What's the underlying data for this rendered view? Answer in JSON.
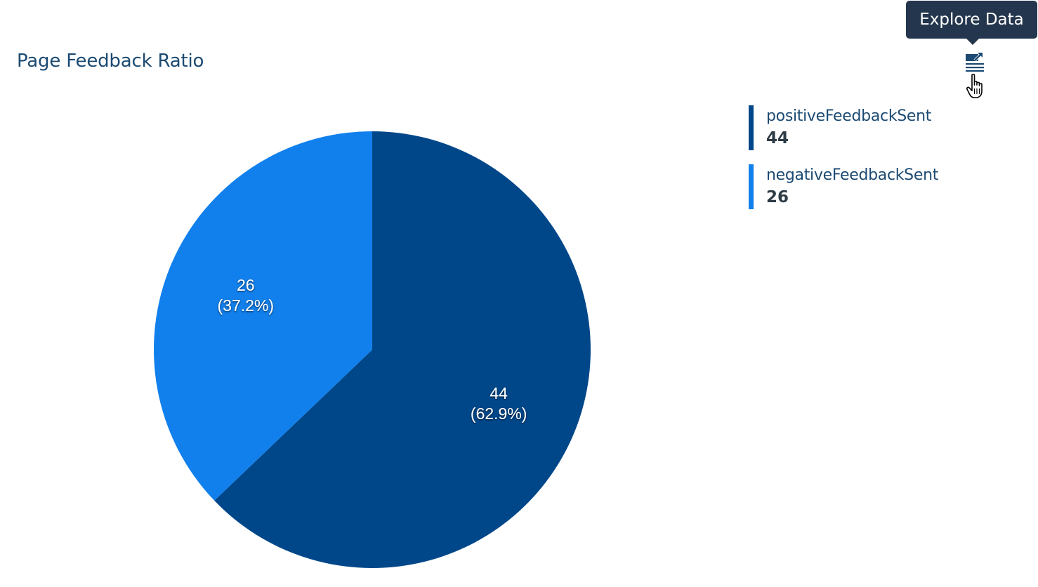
{
  "title": "Page Feedback Ratio",
  "tooltip": {
    "text": "Explore Data"
  },
  "icons": {
    "explore": "explore-data-icon",
    "cursor": "hand-pointer-icon"
  },
  "colors": {
    "positive": "#00478a",
    "negative": "#1180ec"
  },
  "chart_data": {
    "type": "pie",
    "title": "Page Feedback Ratio",
    "slices": [
      {
        "name": "positiveFeedbackSent",
        "value": 44,
        "percent": "62.9%",
        "color": "#00478a"
      },
      {
        "name": "negativeFeedbackSent",
        "value": 26,
        "percent": "37.2%",
        "color": "#1180ec"
      }
    ],
    "legend_position": "top-right"
  },
  "legend": {
    "items": [
      {
        "name": "positiveFeedbackSent",
        "value": "44"
      },
      {
        "name": "negativeFeedbackSent",
        "value": "26"
      }
    ]
  },
  "labels": [
    {
      "value": "44",
      "percent": "(62.9%)"
    },
    {
      "value": "26",
      "percent": "(37.2%)"
    }
  ]
}
